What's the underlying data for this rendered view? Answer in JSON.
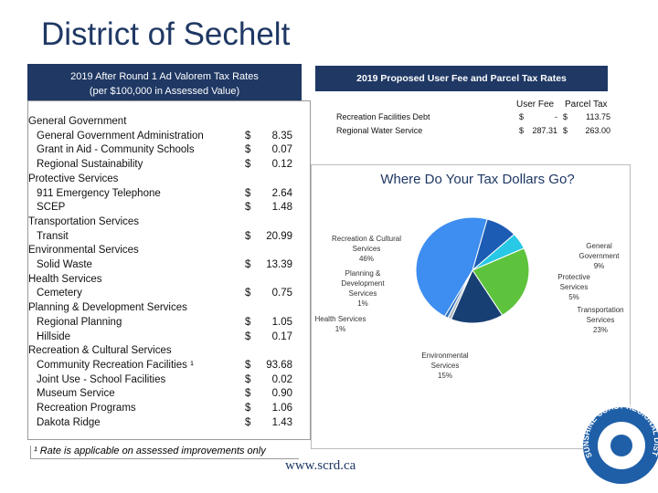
{
  "title": "District of Sechelt",
  "rates_table": {
    "header": [
      "2019 After Round 1 Ad Valorem Tax Rates",
      "(per $100,000 in Assessed Value)"
    ],
    "rows": [
      {
        "label": "General Government"
      },
      {
        "label": "General Government Administration",
        "currency": "$",
        "rate": "8.35"
      },
      {
        "label": "Grant in Aid - Community Schools",
        "currency": "$",
        "rate": "0.07"
      },
      {
        "label": "Regional Sustainability",
        "currency": "$",
        "rate": "0.12"
      },
      {
        "label": "Protective Services"
      },
      {
        "label": "911 Emergency Telephone",
        "currency": "$",
        "rate": "2.64"
      },
      {
        "label": "SCEP",
        "currency": "$",
        "rate": "1.48"
      },
      {
        "label": "Transportation Services"
      },
      {
        "label": "Transit",
        "currency": "$",
        "rate": "20.99"
      },
      {
        "label": "Environmental Services"
      },
      {
        "label": "Solid Waste",
        "currency": "$",
        "rate": "13.39"
      },
      {
        "label": "Health Services"
      },
      {
        "label": "Cemetery",
        "currency": "$",
        "rate": "0.75"
      },
      {
        "label": "Planning & Development Services"
      },
      {
        "label": "Regional Planning",
        "currency": "$",
        "rate": "1.05"
      },
      {
        "label": "Hillside",
        "currency": "$",
        "rate": "0.17"
      },
      {
        "label": "Recreation & Cultural Services"
      },
      {
        "label": "Community Recreation Facilities ¹",
        "currency": "$",
        "rate": "93.68"
      },
      {
        "label": "Joint Use - School Facilities",
        "currency": "$",
        "rate": "0.02"
      },
      {
        "label": "Museum Service",
        "currency": "$",
        "rate": "0.90"
      },
      {
        "label": "Recreation Programs",
        "currency": "$",
        "rate": "1.06"
      },
      {
        "label": "Dakota Ridge",
        "currency": "$",
        "rate": "1.43"
      }
    ],
    "footnote": "¹ Rate is applicable on assessed improvements only"
  },
  "fees_table": {
    "header": "2019 Proposed User Fee and Parcel Tax Rates",
    "columns": [
      "User Fee",
      "Parcel Tax"
    ],
    "rows": [
      [
        "Recreation Facilities Debt",
        "$",
        "-",
        "$",
        "113.75"
      ],
      [
        "Regional Water Service",
        "$",
        "287.31",
        "$",
        "263.00"
      ]
    ]
  },
  "chart_data": {
    "type": "pie",
    "title": "Where Do Your Tax Dollars Go?",
    "categories": [
      "General Government",
      "Protective Services",
      "Transportation Services",
      "Environmental Services",
      "Health Services",
      "Planning & Development Services",
      "Recreation & Cultural Services"
    ],
    "values": [
      9,
      5,
      23,
      15,
      1,
      1,
      46
    ],
    "value_labels": [
      "9%",
      "5%",
      "23%",
      "15%",
      "1%",
      "1%",
      "46%"
    ],
    "colors": [
      "#1c5cb4",
      "#28c8e6",
      "#5ec33c",
      "#183f73",
      "#b0b8c0",
      "#2d6fbf",
      "#3d8ef0"
    ]
  },
  "url": "www.scrd.ca",
  "logo": "SUNSHINE COAST REGIONAL DISTRICT"
}
